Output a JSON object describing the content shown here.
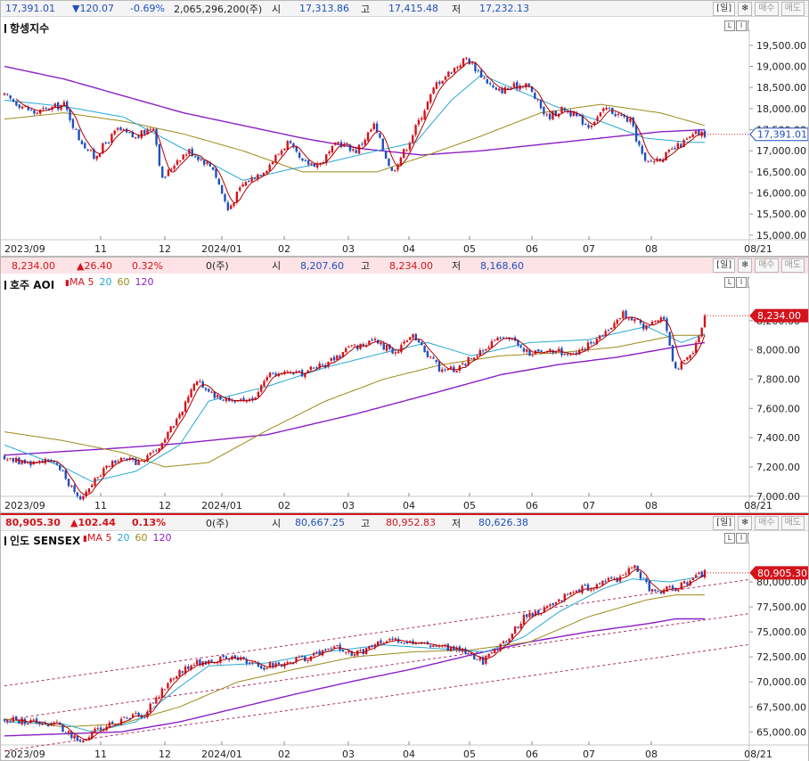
{
  "colors": {
    "up": "#d4141c",
    "down": "#1f4fbf",
    "ma5": "#b00000",
    "ma20": "#26a8d6",
    "ma60": "#9c8a1a",
    "ma120": "#8b1fc6",
    "price_tag": "#d4141c",
    "trend": "#b0306a"
  },
  "buttons": {
    "day": "[일]",
    "settings_icon": "gear-icon",
    "buy": "매수",
    "sell": "매도"
  },
  "hang_seng": {
    "header": {
      "last": "17,391.01",
      "change": "▼120.07",
      "change_pct": "-0.69%",
      "volume": "2,065,296,200(주)",
      "open_label": "시",
      "open": "17,313.86",
      "high_label": "고",
      "high": "17,415.48",
      "low_label": "저",
      "low": "17,232.13"
    },
    "title": "항셍지수"
  },
  "aoi": {
    "header": {
      "last": "8,234.00",
      "change": "▲26.40",
      "change_pct": "0.32%",
      "volume": "0(주)",
      "open_label": "시",
      "open": "8,207.60",
      "high_label": "고",
      "high": "8,234.00",
      "low_label": "저",
      "low": "8,168.60"
    },
    "title": "호주 AOI",
    "ma_label": "MA",
    "ma": [
      "5",
      "20",
      "60",
      "120"
    ]
  },
  "sensex": {
    "header": {
      "last": "80,905.30",
      "change": "▲102.44",
      "change_pct": "0.13%",
      "volume": "0(주)",
      "open_label": "시",
      "open": "80,667.25",
      "high_label": "고",
      "high": "80,952.83",
      "low_label": "저",
      "low": "80,626.38"
    },
    "title": "인도 SENSEX",
    "ma_label": "MA",
    "ma": [
      "5",
      "20",
      "60",
      "120"
    ]
  },
  "chart_data": [
    {
      "type": "candlestick",
      "title": "항셍지수",
      "x_ticks": [
        "2023/09",
        "11",
        "12",
        "2024/01",
        "02",
        "03",
        "04",
        "05",
        "06",
        "07",
        "08",
        "08/21"
      ],
      "y_ticks": [
        "19,500.00",
        "19,000.00",
        "18,500.00",
        "18,000.00",
        "17,500.00",
        "17,000.00",
        "16,500.00",
        "16,000.00",
        "15,500.00",
        "15,000.00"
      ],
      "ylim": [
        14850,
        19750
      ],
      "last_tag": "17,391.01",
      "close_path": [
        [
          0,
          18300
        ],
        [
          10,
          17900
        ],
        [
          20,
          18100
        ],
        [
          25,
          17300
        ],
        [
          30,
          16850
        ],
        [
          38,
          17500
        ],
        [
          44,
          17300
        ],
        [
          50,
          17600
        ],
        [
          53,
          16300
        ],
        [
          58,
          16800
        ],
        [
          62,
          17000
        ],
        [
          70,
          16600
        ],
        [
          75,
          15600
        ],
        [
          80,
          16200
        ],
        [
          88,
          16600
        ],
        [
          95,
          17200
        ],
        [
          100,
          16700
        ],
        [
          106,
          16700
        ],
        [
          112,
          17200
        ],
        [
          118,
          17000
        ],
        [
          124,
          17600
        ],
        [
          130,
          16500
        ],
        [
          135,
          17100
        ],
        [
          145,
          18600
        ],
        [
          155,
          19200
        ],
        [
          160,
          18800
        ],
        [
          165,
          18400
        ],
        [
          175,
          18600
        ],
        [
          182,
          17800
        ],
        [
          188,
          18000
        ],
        [
          196,
          17600
        ],
        [
          202,
          18000
        ],
        [
          210,
          17700
        ],
        [
          215,
          16700
        ],
        [
          222,
          16900
        ],
        [
          228,
          17200
        ],
        [
          232,
          17400
        ],
        [
          235,
          17391
        ]
      ],
      "ma20": [
        [
          0,
          18200
        ],
        [
          20,
          18050
        ],
        [
          40,
          17800
        ],
        [
          60,
          17050
        ],
        [
          80,
          16300
        ],
        [
          95,
          16550
        ],
        [
          110,
          16750
        ],
        [
          125,
          17000
        ],
        [
          138,
          17200
        ],
        [
          150,
          18200
        ],
        [
          160,
          18800
        ],
        [
          170,
          18500
        ],
        [
          185,
          18050
        ],
        [
          200,
          17700
        ],
        [
          215,
          17300
        ],
        [
          230,
          17200
        ],
        [
          235,
          17200
        ]
      ],
      "ma60": [
        [
          0,
          17750
        ],
        [
          20,
          17900
        ],
        [
          40,
          17700
        ],
        [
          60,
          17400
        ],
        [
          80,
          17000
        ],
        [
          100,
          16500
        ],
        [
          125,
          16500
        ],
        [
          140,
          16850
        ],
        [
          160,
          17350
        ],
        [
          180,
          17900
        ],
        [
          200,
          18100
        ],
        [
          220,
          17900
        ],
        [
          235,
          17600
        ]
      ],
      "ma120": [
        [
          0,
          19000
        ],
        [
          20,
          18700
        ],
        [
          40,
          18300
        ],
        [
          60,
          17900
        ],
        [
          80,
          17600
        ],
        [
          100,
          17300
        ],
        [
          120,
          17050
        ],
        [
          140,
          16900
        ],
        [
          160,
          17000
        ],
        [
          180,
          17150
        ],
        [
          200,
          17300
        ],
        [
          220,
          17450
        ],
        [
          235,
          17500
        ]
      ]
    },
    {
      "type": "candlestick",
      "title": "호주 AOI",
      "x_ticks": [
        "2023/09",
        "11",
        "12",
        "2024/01",
        "02",
        "03",
        "04",
        "05",
        "06",
        "07",
        "08",
        "08/21"
      ],
      "y_ticks": [
        "8,200.00",
        "8,000.00",
        "7,800.00",
        "7,600.00",
        "7,400.00",
        "7,200.00",
        "7,000.00"
      ],
      "ylim": [
        6950,
        8400
      ],
      "last_tag": "8,234.00",
      "close_path": [
        [
          0,
          7270
        ],
        [
          8,
          7220
        ],
        [
          15,
          7260
        ],
        [
          20,
          7150
        ],
        [
          26,
          6980
        ],
        [
          30,
          7100
        ],
        [
          38,
          7250
        ],
        [
          46,
          7230
        ],
        [
          52,
          7300
        ],
        [
          60,
          7550
        ],
        [
          66,
          7800
        ],
        [
          72,
          7680
        ],
        [
          78,
          7660
        ],
        [
          84,
          7650
        ],
        [
          92,
          7850
        ],
        [
          100,
          7830
        ],
        [
          110,
          7900
        ],
        [
          118,
          8000
        ],
        [
          126,
          8060
        ],
        [
          134,
          7990
        ],
        [
          140,
          8100
        ],
        [
          150,
          7850
        ],
        [
          156,
          7880
        ],
        [
          164,
          8000
        ],
        [
          172,
          8100
        ],
        [
          180,
          7980
        ],
        [
          190,
          7990
        ],
        [
          196,
          7980
        ],
        [
          204,
          8080
        ],
        [
          212,
          8250
        ],
        [
          220,
          8150
        ],
        [
          226,
          8220
        ],
        [
          230,
          7850
        ],
        [
          236,
          8000
        ],
        [
          240,
          8230
        ]
      ],
      "ma20": [
        [
          0,
          7350
        ],
        [
          20,
          7200
        ],
        [
          30,
          7100
        ],
        [
          45,
          7170
        ],
        [
          60,
          7350
        ],
        [
          70,
          7650
        ],
        [
          80,
          7700
        ],
        [
          90,
          7750
        ],
        [
          110,
          7880
        ],
        [
          130,
          7980
        ],
        [
          145,
          8050
        ],
        [
          160,
          7960
        ],
        [
          180,
          8050
        ],
        [
          200,
          8070
        ],
        [
          220,
          8160
        ],
        [
          232,
          8050
        ],
        [
          240,
          8110
        ]
      ],
      "ma60": [
        [
          0,
          7440
        ],
        [
          20,
          7380
        ],
        [
          40,
          7300
        ],
        [
          55,
          7200
        ],
        [
          70,
          7230
        ],
        [
          90,
          7450
        ],
        [
          110,
          7650
        ],
        [
          130,
          7800
        ],
        [
          150,
          7900
        ],
        [
          170,
          7960
        ],
        [
          190,
          7980
        ],
        [
          210,
          8020
        ],
        [
          230,
          8100
        ],
        [
          240,
          8100
        ]
      ],
      "ma120": [
        [
          0,
          7280
        ],
        [
          40,
          7330
        ],
        [
          60,
          7360
        ],
        [
          90,
          7420
        ],
        [
          120,
          7560
        ],
        [
          150,
          7720
        ],
        [
          170,
          7830
        ],
        [
          190,
          7900
        ],
        [
          210,
          7950
        ],
        [
          230,
          8020
        ],
        [
          240,
          8050
        ]
      ]
    },
    {
      "type": "candlestick",
      "title": "인도 SENSEX",
      "x_ticks": [
        "2023/09",
        "11",
        "12",
        "2024/01",
        "02",
        "03",
        "04",
        "05",
        "06",
        "07",
        "08",
        "08/21"
      ],
      "y_ticks": [
        "80,000.00",
        "77,500.00",
        "75,000.00",
        "72,500.00",
        "70,000.00",
        "67,500.00",
        "65,000.00"
      ],
      "ylim": [
        62800,
        83300
      ],
      "last_tag": "80,905.30",
      "close_path": [
        [
          0,
          66200
        ],
        [
          10,
          66000
        ],
        [
          18,
          65800
        ],
        [
          26,
          63900
        ],
        [
          32,
          65200
        ],
        [
          40,
          66100
        ],
        [
          48,
          66800
        ],
        [
          56,
          70000
        ],
        [
          64,
          71800
        ],
        [
          72,
          72200
        ],
        [
          80,
          72300
        ],
        [
          88,
          71500
        ],
        [
          96,
          71800
        ],
        [
          104,
          72500
        ],
        [
          112,
          73600
        ],
        [
          120,
          72700
        ],
        [
          128,
          73800
        ],
        [
          136,
          74200
        ],
        [
          142,
          73900
        ],
        [
          150,
          73600
        ],
        [
          158,
          73000
        ],
        [
          164,
          72000
        ],
        [
          170,
          73500
        ],
        [
          178,
          76500
        ],
        [
          186,
          77300
        ],
        [
          194,
          79000
        ],
        [
          202,
          79600
        ],
        [
          210,
          80300
        ],
        [
          216,
          81500
        ],
        [
          222,
          79000
        ],
        [
          230,
          79300
        ],
        [
          240,
          80905
        ]
      ],
      "ma20": [
        [
          0,
          66000
        ],
        [
          20,
          65800
        ],
        [
          30,
          65000
        ],
        [
          45,
          66000
        ],
        [
          60,
          69500
        ],
        [
          70,
          71600
        ],
        [
          90,
          71900
        ],
        [
          110,
          73000
        ],
        [
          130,
          73700
        ],
        [
          150,
          73300
        ],
        [
          165,
          73000
        ],
        [
          178,
          74500
        ],
        [
          190,
          77000
        ],
        [
          205,
          79300
        ],
        [
          215,
          80300
        ],
        [
          228,
          80000
        ],
        [
          240,
          80600
        ]
      ],
      "ma60": [
        [
          0,
          66300
        ],
        [
          20,
          65500
        ],
        [
          40,
          65800
        ],
        [
          60,
          67500
        ],
        [
          80,
          70000
        ],
        [
          100,
          71300
        ],
        [
          120,
          72500
        ],
        [
          140,
          73000
        ],
        [
          160,
          73200
        ],
        [
          180,
          74000
        ],
        [
          200,
          76500
        ],
        [
          220,
          78200
        ],
        [
          230,
          78700
        ]
      ],
      "ma120": [
        [
          0,
          64600
        ],
        [
          40,
          65000
        ],
        [
          60,
          66000
        ],
        [
          80,
          67400
        ],
        [
          100,
          68800
        ],
        [
          120,
          70100
        ],
        [
          140,
          71300
        ],
        [
          160,
          72700
        ],
        [
          180,
          74000
        ],
        [
          200,
          75000
        ],
        [
          220,
          75800
        ],
        [
          230,
          76300
        ]
      ],
      "trend_lines": [
        [
          [
            0,
            69600
          ],
          [
            240,
            79600
          ]
        ],
        [
          [
            0,
            66200
          ],
          [
            240,
            76200
          ]
        ],
        [
          [
            0,
            63100
          ],
          [
            240,
            73100
          ]
        ]
      ]
    }
  ]
}
